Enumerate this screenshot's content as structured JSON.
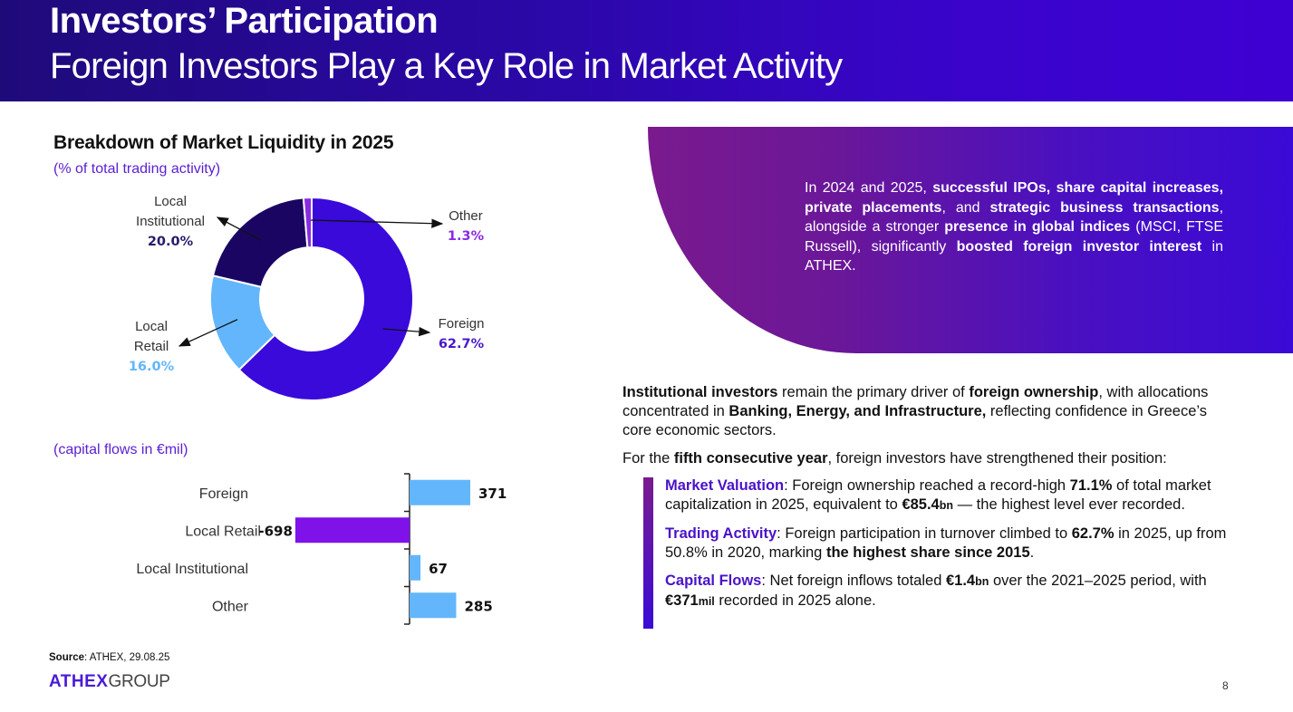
{
  "header": {
    "title": "Investors’ Participation",
    "subtitle": "Foreign Investors Play a Key Role in Market Activity"
  },
  "colors": {
    "foreign": "#3a0adb",
    "local_retail": "#63b6fb",
    "local_institutional": "#1a0563",
    "other": "#8a2be2",
    "negative_bar": "#7e12e8",
    "accent_text": "#5a1fd1"
  },
  "chart_data": [
    {
      "type": "pie",
      "title": "Breakdown of Market Liquidity in 2025",
      "subtitle": "(% of total trading activity)",
      "donut": true,
      "unit": "%",
      "slices": [
        {
          "label": "Foreign",
          "value": 62.7,
          "display": "62.7%",
          "color": "#3a0adb",
          "label_color": "#4a18c8"
        },
        {
          "label": "Local Retail",
          "value": 16.0,
          "display": "16.0%",
          "color": "#63b6fb",
          "label_color": "#63b6fb"
        },
        {
          "label": "Local Institutional",
          "value": 20.0,
          "display": "20.0%",
          "color": "#1a0563",
          "label_color": "#2a1a6a"
        },
        {
          "label": "Other",
          "value": 1.3,
          "display": "1.3%",
          "color": "#8a2be2",
          "label_color": "#8a2be2"
        }
      ],
      "label_lines": {
        "Local Institutional": [
          "Local",
          "Institutional"
        ],
        "Local Retail": [
          "Local",
          "Retail"
        ],
        "Other": [
          "Other"
        ],
        "Foreign": [
          "Foreign"
        ]
      }
    },
    {
      "type": "bar",
      "orientation": "horizontal",
      "subtitle": "(capital flows in €mil)",
      "categories": [
        "Foreign",
        "Local Retail",
        "Local Institutional",
        "Other"
      ],
      "values": [
        371,
        -698,
        67,
        285
      ],
      "value_labels": [
        "371",
        "-698",
        "67",
        "285"
      ],
      "xlim": [
        -800,
        600
      ]
    }
  ],
  "panel": {
    "segments": [
      {
        "t": "In 2024 and 2025, ",
        "b": false
      },
      {
        "t": "successful IPOs, share capital increases, private placements",
        "b": true
      },
      {
        "t": ", and ",
        "b": false
      },
      {
        "t": "strategic business transactions",
        "b": true
      },
      {
        "t": ", alongside a stronger ",
        "b": false
      },
      {
        "t": "presence in global indices",
        "b": true
      },
      {
        "t": " (MSCI, FTSE Russell), significantly ",
        "b": false
      },
      {
        "t": "boosted foreign investor interest",
        "b": true
      },
      {
        "t": " in ATHEX.",
        "b": false
      }
    ]
  },
  "para1": {
    "segments": [
      {
        "t": "Institutional investors",
        "b": true
      },
      {
        "t": " remain the primary driver of ",
        "b": false
      },
      {
        "t": "foreign ownership",
        "b": true
      },
      {
        "t": ", with allocations concentrated in ",
        "b": false
      },
      {
        "t": "Banking, Energy, and Infrastructure,",
        "b": true
      },
      {
        "t": " reflecting confidence in Greece’s core economic sectors.",
        "b": false
      }
    ]
  },
  "para2": {
    "segments": [
      {
        "t": "For the ",
        "b": false
      },
      {
        "t": "fifth consecutive year",
        "b": true
      },
      {
        "t": ", foreign investors have strengthened their position:",
        "b": false
      }
    ]
  },
  "bullets": [
    {
      "label": "Market Valuation",
      "segments": [
        {
          "t": ": Foreign ownership reached a record-high ",
          "s": "n"
        },
        {
          "t": "71.1%",
          "s": "b"
        },
        {
          "t": " of total market capitalization in 2025, equivalent to ",
          "s": "n"
        },
        {
          "t": "€85.4",
          "s": "b"
        },
        {
          "t": "bn",
          "s": "sm"
        },
        {
          "t": " — the highest level ever recorded.",
          "s": "n"
        }
      ]
    },
    {
      "label": "Trading Activity",
      "segments": [
        {
          "t": ": Foreign participation in turnover climbed to ",
          "s": "n"
        },
        {
          "t": "62.7%",
          "s": "b"
        },
        {
          "t": " in 2025, up from 50.8% in 2020, marking ",
          "s": "n"
        },
        {
          "t": "the highest share since 2015",
          "s": "b"
        },
        {
          "t": ".",
          "s": "n"
        }
      ]
    },
    {
      "label": "Capital Flows",
      "segments": [
        {
          "t": ": Net foreign inflows totaled ",
          "s": "n"
        },
        {
          "t": "€1.4",
          "s": "b"
        },
        {
          "t": "bn",
          "s": "sm"
        },
        {
          "t": " over the 2021–2025 period, with ",
          "s": "n"
        },
        {
          "t": "€371",
          "s": "b"
        },
        {
          "t": "mil",
          "s": "sm"
        },
        {
          "t": " recorded in 2025 alone.",
          "s": "n"
        }
      ]
    }
  ],
  "footer": {
    "source_label": "Source",
    "source_text": ": ATHEX, 29.08.25",
    "logo_primary": "ATHEX",
    "logo_secondary": "GROUP",
    "page_number": "8"
  }
}
